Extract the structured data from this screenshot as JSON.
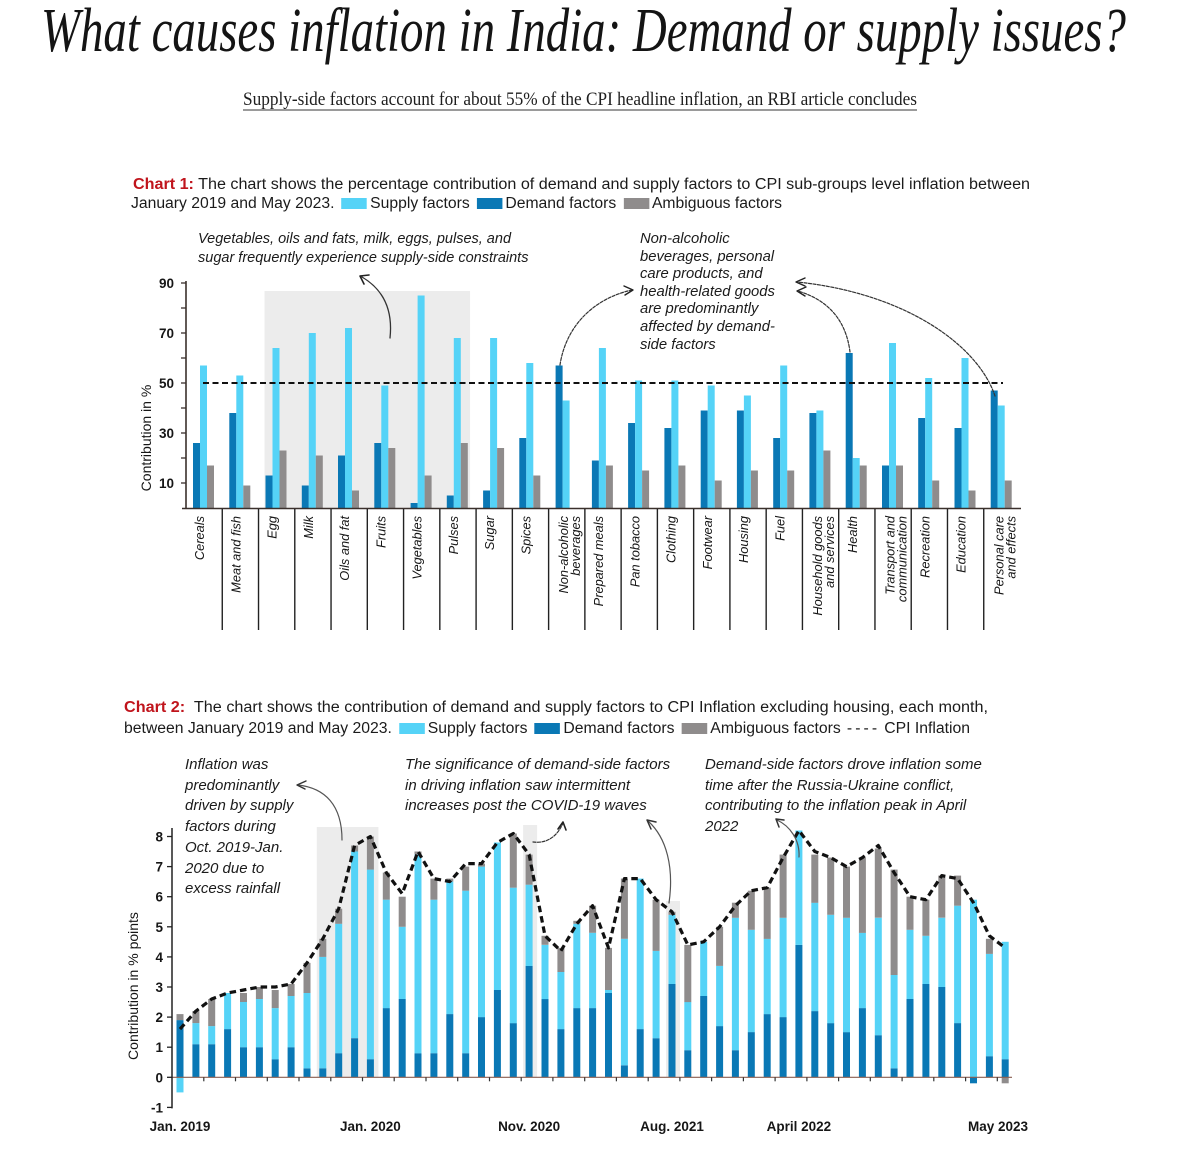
{
  "header": {
    "title": "What causes inflation in India: Demand or supply issues?",
    "subtitle": "Supply-side factors account for about 55% of the CPI headline inflation, an RBI article concludes"
  },
  "colors": {
    "supply": "#55d3f7",
    "demand": "#0a78b5",
    "ambiguous": "#8f8c8c",
    "chart_tag": "#c0141c",
    "highlight": "#ececec",
    "line": "#111111"
  },
  "chart_data": [
    {
      "type": "bar",
      "tag": "Chart 1:",
      "title_lines": [
        "The chart shows the percentage contribution of demand and supply factors to CPI sub-groups level inflation between",
        "January 2019 and May 2023."
      ],
      "legend": [
        {
          "name": "Supply factors",
          "key": "supply"
        },
        {
          "name": "Demand factors",
          "key": "demand"
        },
        {
          "name": "Ambiguous factors",
          "key": "ambiguous"
        }
      ],
      "legend_position": "top",
      "xlabel": "",
      "ylabel": "Contribution in %",
      "ylim": [
        0,
        90
      ],
      "yticks": [
        10,
        30,
        50,
        70,
        90
      ],
      "grid": false,
      "reference_line": {
        "value": 50,
        "style": "dashed"
      },
      "categories": [
        [
          "Cereals"
        ],
        [
          "Meat and fish"
        ],
        [
          "Egg"
        ],
        [
          "Milk"
        ],
        [
          "Oils and fat"
        ],
        [
          "Fruits"
        ],
        [
          "Vegetables"
        ],
        [
          "Pulses"
        ],
        [
          "Sugar"
        ],
        [
          "Spices"
        ],
        [
          "Non-alcoholic",
          "beverages"
        ],
        [
          "Prepared meals"
        ],
        [
          "Pan tobacco"
        ],
        [
          "Clothing"
        ],
        [
          "Footwear"
        ],
        [
          "Housing"
        ],
        [
          "Fuel"
        ],
        [
          "Household goods",
          "and services"
        ],
        [
          "Health"
        ],
        [
          "Transport and",
          "communication"
        ],
        [
          "Recreation"
        ],
        [
          "Education"
        ],
        [
          "Personal care",
          "and effects"
        ]
      ],
      "series": [
        {
          "name": "Demand factors",
          "key": "demand",
          "values": [
            26,
            38,
            13,
            9,
            21,
            26,
            2,
            5,
            7,
            28,
            57,
            19,
            34,
            32,
            39,
            39,
            28,
            38,
            62,
            17,
            36,
            32,
            47
          ]
        },
        {
          "name": "Supply factors",
          "key": "supply",
          "values": [
            57,
            53,
            64,
            70,
            72,
            49,
            85,
            68,
            68,
            58,
            43,
            64,
            51,
            51,
            49,
            45,
            57,
            39,
            20,
            66,
            52,
            60,
            41
          ]
        },
        {
          "name": "Ambiguous factors",
          "key": "ambiguous",
          "values": [
            17,
            9,
            23,
            21,
            7,
            24,
            13,
            26,
            24,
            13,
            0,
            17,
            15,
            17,
            11,
            15,
            15,
            23,
            17,
            17,
            11,
            7,
            11
          ]
        }
      ],
      "highlight_range": [
        "Egg",
        "Pulses"
      ],
      "annotations": [
        {
          "lines": [
            "Vegetables, oils and fats, milk, eggs, pulses, and",
            "sugar frequently experience supply-side constraints"
          ]
        },
        {
          "lines": [
            "Non-alcoholic",
            "beverages, personal",
            "care products, and",
            "health-related goods",
            "are predominantly",
            "affected by demand-",
            "side factors"
          ]
        }
      ]
    },
    {
      "type": "bar",
      "subtype": "stacked-bar-with-line",
      "tag": "Chart 2:",
      "title_lines": [
        "The chart shows the contribution of demand and supply factors to CPI Inflation excluding housing, each month,",
        "between January 2019 and May 2023."
      ],
      "legend": [
        {
          "name": "Supply factors",
          "key": "supply"
        },
        {
          "name": "Demand factors",
          "key": "demand"
        },
        {
          "name": "Ambiguous factors",
          "key": "ambiguous"
        },
        {
          "name": "CPI Inflation",
          "key": "line",
          "marker": "----"
        }
      ],
      "legend_position": "top",
      "xlabel": "",
      "ylabel": "Contribution in % points",
      "ylim": [
        -1,
        8
      ],
      "yticks": [
        -1,
        0,
        1,
        2,
        3,
        4,
        5,
        6,
        7,
        8
      ],
      "grid": false,
      "x": [
        "Jan 2019",
        "Feb 2019",
        "Mar 2019",
        "Apr 2019",
        "May 2019",
        "Jun 2019",
        "Jul 2019",
        "Aug 2019",
        "Sep 2019",
        "Oct 2019",
        "Nov 2019",
        "Dec 2019",
        "Jan 2020",
        "Feb 2020",
        "Mar 2020",
        "Apr 2020",
        "May 2020",
        "Jun 2020",
        "Jul 2020",
        "Aug 2020",
        "Sep 2020",
        "Oct 2020",
        "Nov 2020",
        "Dec 2020",
        "Jan 2021",
        "Feb 2021",
        "Mar 2021",
        "Apr 2021",
        "May 2021",
        "Jun 2021",
        "Jul 2021",
        "Aug 2021",
        "Sep 2021",
        "Oct 2021",
        "Nov 2021",
        "Dec 2021",
        "Jan 2022",
        "Feb 2022",
        "Mar 2022",
        "Apr 2022",
        "May 2022",
        "Jun 2022",
        "Jul 2022",
        "Aug 2022",
        "Sep 2022",
        "Oct 2022",
        "Nov 2022",
        "Dec 2022",
        "Jan 2023",
        "Feb 2023",
        "Mar 2023",
        "Apr 2023",
        "May 2023"
      ],
      "xtick_labels": [
        {
          "label": "Jan. 2019",
          "at": "Jan 2019"
        },
        {
          "label": "Jan. 2020",
          "at": "Jan 2020"
        },
        {
          "label": "Nov. 2020",
          "at": "Nov 2020"
        },
        {
          "label": "Aug. 2021",
          "at": "Aug 2021"
        },
        {
          "label": "April 2022",
          "at": "Apr 2022"
        },
        {
          "label": "May 2023",
          "at": "May 2023"
        }
      ],
      "series": [
        {
          "name": "Demand factors",
          "key": "demand",
          "values": [
            1.9,
            1.1,
            1.1,
            1.6,
            1.0,
            1.0,
            0.6,
            1.0,
            0.3,
            0.3,
            0.8,
            1.3,
            0.6,
            2.3,
            2.6,
            0.8,
            0.8,
            2.1,
            0.8,
            2.0,
            2.9,
            1.8,
            3.7,
            2.6,
            1.6,
            2.3,
            2.3,
            2.8,
            0.4,
            1.6,
            1.3,
            3.1,
            0.9,
            2.7,
            1.7,
            0.9,
            1.5,
            2.1,
            2.0,
            4.4,
            2.2,
            1.8,
            1.5,
            2.3,
            1.4,
            0.3,
            2.6,
            3.1,
            3.0,
            1.8,
            -0.2,
            0.7,
            0.6
          ]
        },
        {
          "name": "Supply factors",
          "key": "supply",
          "values": [
            -0.5,
            0.7,
            0.6,
            1.2,
            1.5,
            1.6,
            1.7,
            1.7,
            2.5,
            3.7,
            4.3,
            6.2,
            6.3,
            3.6,
            2.4,
            6.6,
            5.1,
            4.4,
            5.4,
            5.0,
            4.9,
            4.5,
            2.7,
            1.8,
            1.9,
            2.8,
            2.5,
            0.1,
            4.2,
            5.0,
            2.9,
            2.3,
            1.6,
            1.8,
            2.0,
            4.4,
            3.4,
            2.5,
            3.3,
            3.8,
            3.6,
            3.6,
            3.8,
            2.5,
            3.9,
            3.1,
            2.3,
            1.6,
            2.3,
            3.9,
            5.9,
            3.4,
            3.9
          ]
        },
        {
          "name": "Ambiguous factors",
          "key": "ambiguous",
          "values": [
            0.2,
            0.4,
            0.9,
            0.0,
            0.3,
            0.4,
            0.6,
            0.4,
            1.0,
            0.6,
            0.5,
            0.2,
            1.1,
            0.9,
            1.0,
            0.1,
            0.7,
            0.1,
            0.8,
            0.1,
            0.0,
            1.8,
            1.0,
            0.3,
            0.8,
            0.1,
            0.9,
            1.4,
            2.0,
            0.0,
            1.7,
            0.1,
            1.9,
            0.0,
            1.3,
            0.5,
            1.3,
            1.7,
            2.1,
            0.0,
            1.6,
            1.9,
            1.7,
            2.5,
            2.3,
            3.5,
            1.1,
            1.2,
            1.4,
            1.0,
            0.0,
            0.5,
            -0.2
          ]
        },
        {
          "name": "CPI Inflation",
          "key": "line",
          "type": "line",
          "style": "dashed",
          "values": [
            1.6,
            2.2,
            2.6,
            2.8,
            2.9,
            3.0,
            3.0,
            3.1,
            3.8,
            4.6,
            5.6,
            7.7,
            8.0,
            6.8,
            6.1,
            7.5,
            6.6,
            6.5,
            7.1,
            7.1,
            7.8,
            8.1,
            7.4,
            4.7,
            4.2,
            5.1,
            5.7,
            4.3,
            6.6,
            6.6,
            5.9,
            5.5,
            4.4,
            4.5,
            5.0,
            5.7,
            6.2,
            6.3,
            7.3,
            8.2,
            7.5,
            7.3,
            7.0,
            7.3,
            7.7,
            6.8,
            6.0,
            5.9,
            6.7,
            6.6,
            5.8,
            4.7,
            4.3
          ]
        }
      ],
      "highlight_ranges": [
        [
          "Oct 2019",
          "Jan 2020"
        ],
        [
          "Nov 2020",
          "Nov 2020"
        ],
        [
          "Aug 2021",
          "Aug 2021"
        ]
      ],
      "annotations": [
        {
          "lines": [
            "Inflation was",
            "predominantly",
            "driven by supply",
            "factors during",
            "Oct. 2019-Jan.",
            "2020 due to",
            "excess rainfall"
          ]
        },
        {
          "lines": [
            "The significance of demand-side factors",
            "in driving inflation saw intermittent",
            "increases post the COVID-19 waves"
          ]
        },
        {
          "lines": [
            "Demand-side factors drove inflation some",
            "time after the Russia-Ukraine conflict,",
            "contributing to the inflation peak in April",
            "2022"
          ]
        }
      ]
    }
  ]
}
